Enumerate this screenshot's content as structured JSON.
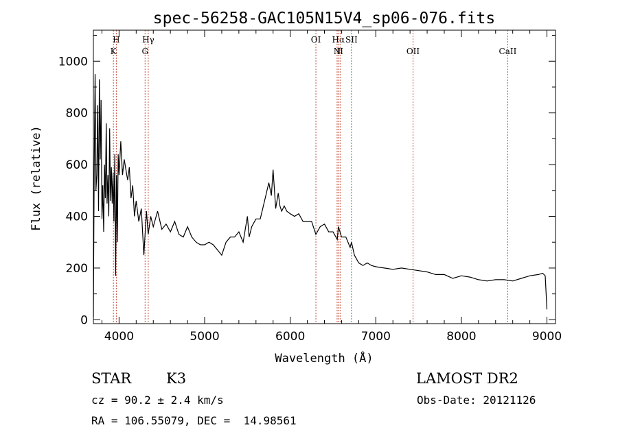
{
  "chart_data": {
    "type": "line",
    "title": "spec-56258-GAC105N15V4_sp06-076.fits",
    "xlabel": "Wavelength (Å)",
    "ylabel": "Flux (relative)",
    "xlim": [
      3700,
      9100
    ],
    "ylim": [
      -15,
      1120
    ],
    "xticks": [
      4000,
      5000,
      6000,
      7000,
      8000,
      9000
    ],
    "xtick_labels": [
      "4000",
      "5000",
      "6000",
      "7000",
      "8000",
      "9000"
    ],
    "yticks": [
      0,
      200,
      400,
      600,
      800,
      1000
    ],
    "ytick_labels": [
      "0",
      "200",
      "400",
      "600",
      "800",
      "1000"
    ],
    "grid": false,
    "series": [
      {
        "color": "#000000",
        "x": [
          3700,
          3710,
          3720,
          3730,
          3740,
          3750,
          3760,
          3770,
          3780,
          3790,
          3800,
          3810,
          3820,
          3830,
          3840,
          3850,
          3860,
          3870,
          3880,
          3890,
          3900,
          3910,
          3920,
          3930,
          3940,
          3950,
          3960,
          3970,
          3980,
          3990,
          4000,
          4020,
          4040,
          4060,
          4080,
          4100,
          4120,
          4140,
          4160,
          4180,
          4200,
          4230,
          4260,
          4290,
          4320,
          4340,
          4370,
          4400,
          4450,
          4500,
          4550,
          4600,
          4650,
          4700,
          4750,
          4800,
          4850,
          4900,
          4950,
          5000,
          5050,
          5100,
          5150,
          5200,
          5250,
          5300,
          5350,
          5400,
          5450,
          5500,
          5520,
          5550,
          5600,
          5650,
          5700,
          5750,
          5780,
          5800,
          5830,
          5860,
          5880,
          5900,
          5930,
          5960,
          6000,
          6050,
          6100,
          6150,
          6200,
          6250,
          6300,
          6350,
          6400,
          6450,
          6500,
          6550,
          6563,
          6600,
          6650,
          6700,
          6716,
          6750,
          6800,
          6850,
          6900,
          6950,
          7000,
          7100,
          7200,
          7300,
          7400,
          7500,
          7600,
          7700,
          7800,
          7900,
          8000,
          8100,
          8200,
          8300,
          8400,
          8500,
          8600,
          8700,
          8800,
          8900,
          8950,
          8980,
          9000
        ],
        "y": [
          10,
          600,
          950,
          500,
          560,
          830,
          420,
          930,
          620,
          850,
          390,
          520,
          340,
          600,
          470,
          760,
          450,
          560,
          400,
          740,
          460,
          590,
          450,
          570,
          380,
          640,
          170,
          560,
          300,
          640,
          560,
          690,
          560,
          620,
          580,
          540,
          590,
          470,
          520,
          400,
          460,
          380,
          430,
          250,
          420,
          330,
          400,
          360,
          420,
          350,
          370,
          340,
          380,
          330,
          320,
          360,
          320,
          300,
          290,
          290,
          300,
          290,
          270,
          250,
          300,
          320,
          320,
          340,
          300,
          400,
          320,
          360,
          390,
          390,
          460,
          530,
          480,
          580,
          430,
          490,
          440,
          420,
          440,
          420,
          410,
          400,
          410,
          380,
          380,
          380,
          330,
          360,
          370,
          340,
          340,
          310,
          360,
          320,
          320,
          280,
          300,
          250,
          220,
          210,
          220,
          210,
          205,
          200,
          195,
          200,
          195,
          190,
          185,
          175,
          175,
          160,
          170,
          165,
          155,
          150,
          155,
          155,
          150,
          160,
          170,
          175,
          180,
          170,
          40
        ]
      }
    ],
    "line_markers": [
      {
        "wavelength": 3934,
        "labels": [
          "",
          "K"
        ]
      },
      {
        "wavelength": 3968,
        "labels": [
          "H",
          ""
        ]
      },
      {
        "wavelength": 4304,
        "labels": [
          "",
          "G"
        ]
      },
      {
        "wavelength": 4341,
        "labels": [
          "Hγ",
          ""
        ]
      },
      {
        "wavelength": 6300,
        "labels": [
          "OI",
          ""
        ]
      },
      {
        "wavelength": 6548,
        "labels": [
          "",
          "N"
        ]
      },
      {
        "wavelength": 6563,
        "labels": [
          "Hα",
          ""
        ]
      },
      {
        "wavelength": 6583,
        "labels": [
          "",
          "II"
        ]
      },
      {
        "wavelength": 6716,
        "labels": [
          "SII",
          ""
        ]
      },
      {
        "wavelength": 7435,
        "labels": [
          "",
          "OII"
        ]
      },
      {
        "wavelength": 8542,
        "labels": [
          "",
          "CaII"
        ]
      }
    ]
  },
  "footer": {
    "object_class": "STAR",
    "subclass": "K3",
    "survey": "LAMOST DR2",
    "redshift": "cz = 90.2 ± 2.4 km/s",
    "obs_date": "Obs-Date: 20121126",
    "coords": "RA = 106.55079, DEC =  14.98561"
  },
  "colors": {
    "spectrum": "#000000",
    "line_marker": "#c8503c",
    "axes": "#000000"
  }
}
